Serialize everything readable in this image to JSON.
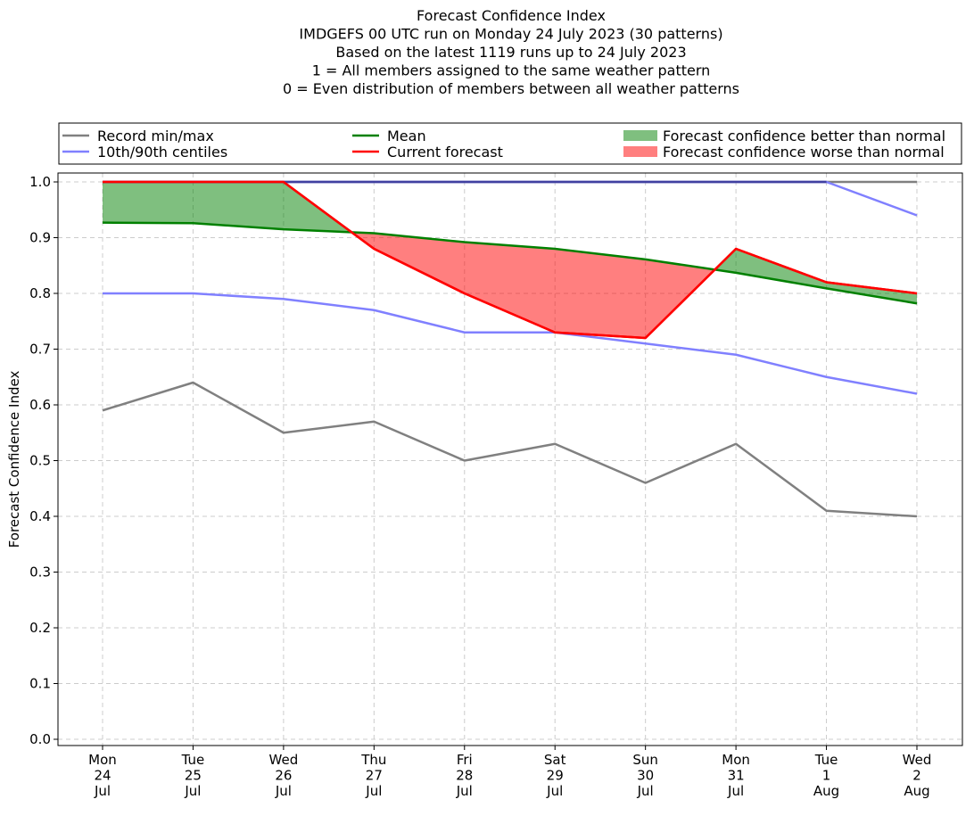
{
  "chart_data": {
    "type": "line",
    "title_lines": [
      "Forecast Confidence Index",
      "IMDGEFS 00 UTC run on Monday 24 July 2023 (30 patterns)",
      "Based on the latest 1119 runs up to 24 July 2023",
      "1 = All members assigned to the same weather pattern",
      "0 = Even distribution of members between all weather patterns"
    ],
    "ylabel": "Forecast Confidence Index",
    "xlabel": "",
    "ylim": [
      0,
      1.0
    ],
    "yticks": [
      "0.0",
      "0.1",
      "0.2",
      "0.3",
      "0.4",
      "0.5",
      "0.6",
      "0.7",
      "0.8",
      "0.9",
      "1.0"
    ],
    "grid": true,
    "legend_position": "top",
    "categories": [
      [
        "Mon",
        "24",
        "Jul"
      ],
      [
        "Tue",
        "25",
        "Jul"
      ],
      [
        "Wed",
        "26",
        "Jul"
      ],
      [
        "Thu",
        "27",
        "Jul"
      ],
      [
        "Fri",
        "28",
        "Jul"
      ],
      [
        "Sat",
        "29",
        "Jul"
      ],
      [
        "Sun",
        "30",
        "Jul"
      ],
      [
        "Mon",
        "31",
        "Jul"
      ],
      [
        "Tue",
        "1",
        "Aug"
      ],
      [
        "Wed",
        "2",
        "Aug"
      ]
    ],
    "series": [
      {
        "key": "record_min",
        "name": "Record min/max",
        "color": "#808080",
        "values": [
          0.59,
          0.64,
          0.55,
          0.57,
          0.5,
          0.53,
          0.46,
          0.53,
          0.41,
          0.4
        ]
      },
      {
        "key": "record_max",
        "name": "Record min/max",
        "color": "#808080",
        "values": [
          1.0,
          1.0,
          1.0,
          1.0,
          1.0,
          1.0,
          1.0,
          1.0,
          1.0,
          1.0
        ]
      },
      {
        "key": "p10",
        "name": "10th/90th centiles",
        "color": "#8080ff",
        "values": [
          0.8,
          0.8,
          0.79,
          0.77,
          0.73,
          0.73,
          0.71,
          0.69,
          0.65,
          0.62
        ]
      },
      {
        "key": "p90",
        "name": "10th/90th centiles",
        "color": "#8080ff",
        "values": [
          1.0,
          1.0,
          1.0,
          1.0,
          1.0,
          1.0,
          1.0,
          1.0,
          1.0,
          0.94
        ]
      },
      {
        "key": "mean",
        "name": "Mean",
        "color": "#008000",
        "values": [
          0.927,
          0.926,
          0.915,
          0.908,
          0.892,
          0.88,
          0.861,
          0.837,
          0.809,
          0.782
        ]
      },
      {
        "key": "current",
        "name": "Current forecast",
        "color": "#ff0000",
        "values": [
          1.0,
          1.0,
          1.0,
          0.88,
          0.8,
          0.73,
          0.72,
          0.88,
          0.82,
          0.8
        ]
      }
    ],
    "fills": {
      "better": {
        "label": "Forecast confidence better than normal",
        "color": "#008000",
        "opacity": 0.5
      },
      "worse": {
        "label": "Forecast confidence worse than normal",
        "color": "#ff0000",
        "opacity": 0.5
      }
    },
    "legend": [
      {
        "label": "Record min/max",
        "kind": "line",
        "color": "#808080"
      },
      {
        "label": "10th/90th centiles",
        "kind": "line",
        "color": "#8080ff"
      },
      {
        "label": "Mean",
        "kind": "line",
        "color": "#008000"
      },
      {
        "label": "Current forecast",
        "kind": "line",
        "color": "#ff0000"
      },
      {
        "label": "Forecast confidence better than normal",
        "kind": "patch",
        "color": "#008000"
      },
      {
        "label": "Forecast confidence worse than normal",
        "kind": "patch",
        "color": "#ff0000"
      }
    ]
  }
}
